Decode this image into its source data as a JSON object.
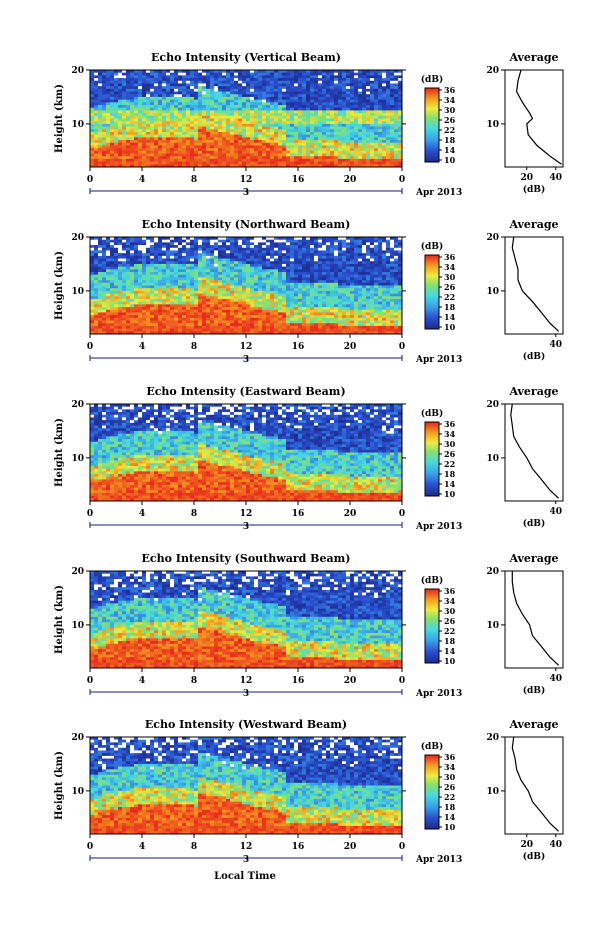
{
  "figure": {
    "xlabel": "Local Time",
    "date_prefix": "3",
    "date_suffix": "Apr 2013",
    "colorbar_unit": "(dB)",
    "colorbar_ticks": [
      "36",
      "34",
      "30",
      "26",
      "22",
      "18",
      "14",
      "10"
    ],
    "average_title": "Average",
    "average_xlabel": "(dB)",
    "ylabel": "Height (km)"
  },
  "chart_data": [
    {
      "type": "heatmap",
      "title": "Echo Intensity (Vertical Beam)",
      "ylabel": "Height (km)",
      "xlim": [
        0,
        24
      ],
      "ylim": [
        2,
        20
      ],
      "x_ticks": [
        "0",
        "4",
        "8",
        "12",
        "16",
        "20",
        "0"
      ],
      "y_ticks": [
        "20",
        "10"
      ],
      "colorbar": {
        "label": "(dB)",
        "range": [
          10,
          36
        ],
        "ticks": [
          10,
          14,
          18,
          22,
          26,
          30,
          34,
          36
        ]
      },
      "average_profile": {
        "title": "Average",
        "xlabel": "(dB)",
        "xlim": [
          5,
          45
        ],
        "x_ticks": [
          "20",
          "40"
        ],
        "y_ticks": [
          "20",
          "10"
        ],
        "height_km": [
          20,
          18,
          16,
          14,
          12,
          11,
          10,
          8,
          6,
          4,
          2.5
        ],
        "intensity_db": [
          16,
          14,
          13,
          17,
          22,
          24,
          20,
          21,
          27,
          36,
          44
        ]
      }
    },
    {
      "type": "heatmap",
      "title": "Echo Intensity (Northward Beam)",
      "ylabel": "Height (km)",
      "xlim": [
        0,
        24
      ],
      "ylim": [
        2,
        20
      ],
      "x_ticks": [
        "0",
        "4",
        "8",
        "12",
        "16",
        "20",
        "0"
      ],
      "y_ticks": [
        "20",
        "10"
      ],
      "colorbar": {
        "label": "(dB)",
        "range": [
          10,
          36
        ],
        "ticks": [
          10,
          14,
          18,
          22,
          26,
          30,
          34,
          36
        ]
      },
      "average_profile": {
        "title": "Average",
        "xlabel": "(dB)",
        "xlim": [
          5,
          45
        ],
        "x_ticks": [
          "40"
        ],
        "y_ticks": [
          "20",
          "10"
        ],
        "height_km": [
          20,
          18,
          16,
          14,
          12,
          10,
          8,
          6,
          4,
          2.5
        ],
        "intensity_db": [
          11,
          10,
          12,
          14,
          14,
          17,
          24,
          30,
          36,
          42
        ]
      }
    },
    {
      "type": "heatmap",
      "title": "Echo Intensity (Eastward Beam)",
      "ylabel": "Height (km)",
      "xlim": [
        0,
        24
      ],
      "ylim": [
        2,
        20
      ],
      "x_ticks": [
        "0",
        "4",
        "8",
        "12",
        "16",
        "20",
        "0"
      ],
      "y_ticks": [
        "20",
        "10"
      ],
      "colorbar": {
        "label": "(dB)",
        "range": [
          10,
          36
        ],
        "ticks": [
          10,
          14,
          18,
          22,
          26,
          30,
          34,
          36
        ]
      },
      "average_profile": {
        "title": "Average",
        "xlabel": "(dB)",
        "xlim": [
          5,
          45
        ],
        "x_ticks": [
          "40"
        ],
        "y_ticks": [
          "20",
          "10"
        ],
        "height_km": [
          20,
          18,
          16,
          14,
          12,
          10,
          8,
          6,
          4,
          2.5
        ],
        "intensity_db": [
          10,
          9,
          10,
          11,
          15,
          20,
          24,
          30,
          36,
          42
        ]
      }
    },
    {
      "type": "heatmap",
      "title": "Echo Intensity (Southward Beam)",
      "ylabel": "Height (km)",
      "xlim": [
        0,
        24
      ],
      "ylim": [
        2,
        20
      ],
      "x_ticks": [
        "0",
        "4",
        "8",
        "12",
        "16",
        "20",
        "0"
      ],
      "y_ticks": [
        "20",
        "10"
      ],
      "colorbar": {
        "label": "(dB)",
        "range": [
          10,
          36
        ],
        "ticks": [
          10,
          14,
          18,
          22,
          26,
          30,
          34,
          36
        ]
      },
      "average_profile": {
        "title": "Average",
        "xlabel": "(dB)",
        "xlim": [
          5,
          45
        ],
        "x_ticks": [
          "40"
        ],
        "y_ticks": [
          "20",
          "10"
        ],
        "height_km": [
          20,
          18,
          16,
          14,
          12,
          10,
          8,
          6,
          4,
          2.5
        ],
        "intensity_db": [
          10,
          10,
          11,
          13,
          17,
          22,
          24,
          30,
          36,
          42
        ]
      }
    },
    {
      "type": "heatmap",
      "title": "Echo Intensity (Westward Beam)",
      "ylabel": "Height (km)",
      "xlim": [
        0,
        24
      ],
      "ylim": [
        2,
        20
      ],
      "x_ticks": [
        "0",
        "4",
        "8",
        "12",
        "16",
        "20",
        "0"
      ],
      "y_ticks": [
        "20",
        "10"
      ],
      "colorbar": {
        "label": "(dB)",
        "range": [
          10,
          36
        ],
        "ticks": [
          10,
          14,
          18,
          22,
          26,
          30,
          34,
          36
        ]
      },
      "average_profile": {
        "title": "Average",
        "xlabel": "(dB)",
        "xlim": [
          5,
          45
        ],
        "x_ticks": [
          "20",
          "40"
        ],
        "y_ticks": [
          "20",
          "10"
        ],
        "height_km": [
          20,
          18,
          16,
          14,
          12,
          10,
          8,
          6,
          4,
          2.5
        ],
        "intensity_db": [
          11,
          10,
          12,
          13,
          16,
          21,
          24,
          30,
          36,
          42
        ]
      }
    }
  ]
}
